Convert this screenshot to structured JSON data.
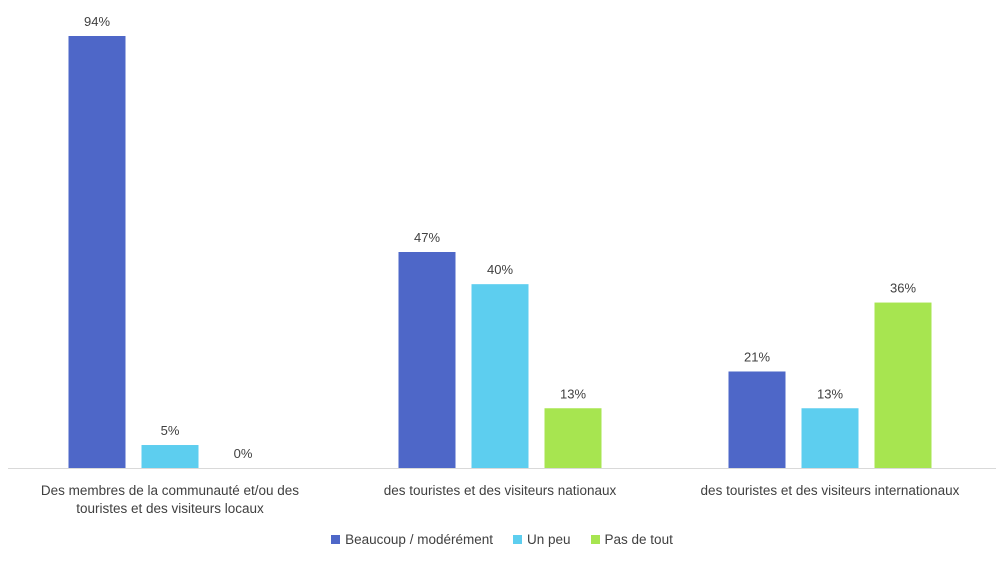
{
  "chart_data": {
    "type": "bar",
    "title": "",
    "xlabel": "",
    "ylabel": "",
    "ylim": [
      0,
      100
    ],
    "grid": false,
    "legend_position": "bottom",
    "categories": [
      "Des membres de la communauté et/ou des touristes et des visiteurs locaux",
      "des touristes et des visiteurs nationaux",
      "des touristes et des visiteurs internationaux"
    ],
    "series": [
      {
        "name": "Beaucoup / modérément",
        "color": "#4e67c8",
        "values": [
          94,
          47,
          21
        ],
        "labels": [
          "94%",
          "47%",
          "21%"
        ]
      },
      {
        "name": "Un peu",
        "color": "#5dceef",
        "values": [
          5,
          40,
          13
        ],
        "labels": [
          "5%",
          "40%",
          "13%"
        ]
      },
      {
        "name": "Pas de tout",
        "color": "#a7e550",
        "values": [
          0,
          13,
          36
        ],
        "labels": [
          "0%",
          "13%",
          "36%"
        ]
      }
    ]
  }
}
